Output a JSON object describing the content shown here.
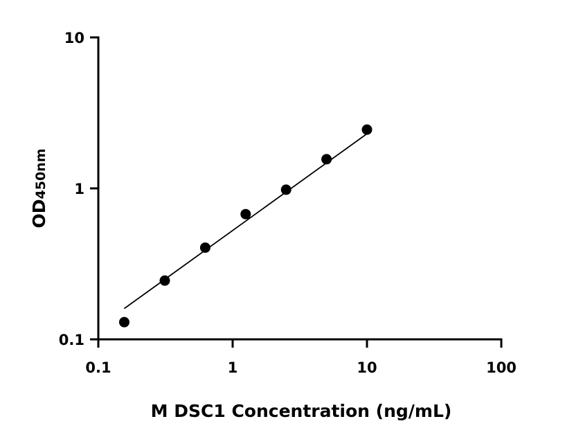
{
  "chart_data": {
    "type": "scatter",
    "x_scale": "log",
    "y_scale": "log",
    "xlim": [
      0.1,
      100
    ],
    "ylim": [
      0.1,
      10
    ],
    "xticks": [
      0.1,
      1,
      10,
      100
    ],
    "yticks": [
      0.1,
      1,
      10
    ],
    "xtick_labels": [
      "0.1",
      "1",
      "10",
      "100"
    ],
    "ytick_labels": [
      "0.1",
      "1",
      "10"
    ],
    "xlabel": "M DSC1 Concentration (ng/mL)",
    "ylabel_main": "OD",
    "ylabel_sub": "450nm",
    "grid": false,
    "series": [
      {
        "x": [
          0.156,
          0.3125,
          0.625,
          1.25,
          2.5,
          5,
          10
        ],
        "y": [
          0.13,
          0.245,
          0.405,
          0.675,
          0.98,
          1.56,
          2.45
        ]
      }
    ],
    "fit_line": {
      "x": [
        0.156,
        10
      ],
      "y": [
        0.16,
        2.3
      ]
    },
    "colors": {
      "marker": "#000000",
      "line": "#000000",
      "axis": "#000000"
    }
  }
}
